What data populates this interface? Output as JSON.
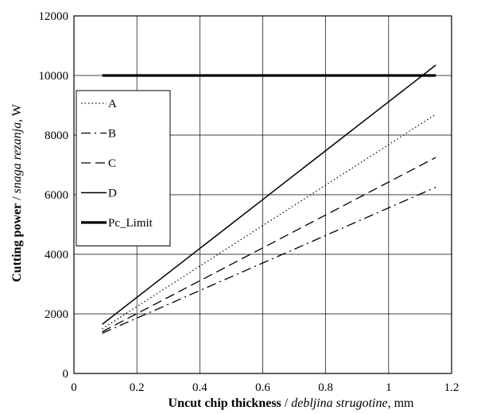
{
  "chart_data": {
    "type": "line",
    "xlabel_bold": "Uncut chip thickness",
    "xlabel_italic": "debljina strugotine",
    "xlabel_unit": ", mm",
    "ylabel_bold": "Cutting power",
    "ylabel_italic": "snaga rezanja",
    "ylabel_unit": ", W",
    "label_separator": " / ",
    "xlim": [
      0,
      1.2
    ],
    "ylim": [
      0,
      12000
    ],
    "xticks": [
      0,
      0.2,
      0.4,
      0.6,
      0.8,
      1,
      1.2
    ],
    "xtick_labels": [
      "0",
      "0.2",
      "0.4",
      "0.6",
      "0.8",
      "1",
      "1.2"
    ],
    "yticks": [
      0,
      2000,
      4000,
      6000,
      8000,
      10000,
      12000
    ],
    "ytick_labels": [
      "0",
      "2000",
      "4000",
      "6000",
      "8000",
      "10000",
      "12000"
    ],
    "grid": true,
    "legend_position": "upper-left",
    "series": [
      {
        "name": "A",
        "style": "dotted",
        "x": [
          0.09,
          1.15
        ],
        "y": [
          1500,
          8700
        ]
      },
      {
        "name": "B",
        "style": "dashdot",
        "x": [
          0.09,
          1.15
        ],
        "y": [
          1350,
          6250
        ]
      },
      {
        "name": "C",
        "style": "dashed",
        "x": [
          0.09,
          1.15
        ],
        "y": [
          1400,
          7250
        ]
      },
      {
        "name": "D",
        "style": "solid",
        "x": [
          0.09,
          1.15
        ],
        "y": [
          1650,
          10350
        ]
      },
      {
        "name": "Pc_Limit",
        "style": "thick",
        "x": [
          0.09,
          1.15
        ],
        "y": [
          10000,
          10000
        ]
      }
    ]
  }
}
